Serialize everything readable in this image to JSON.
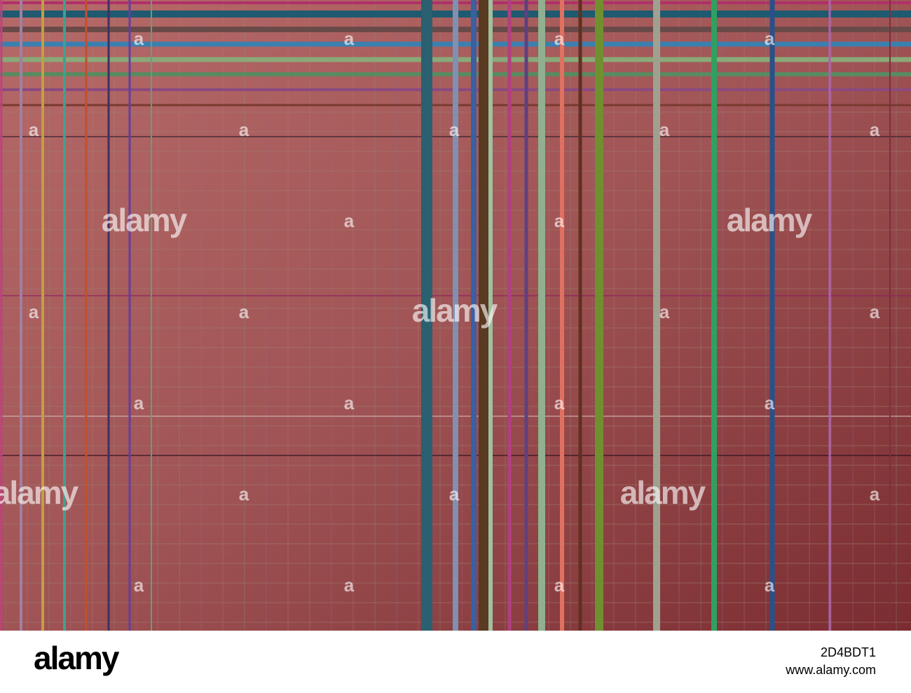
{
  "watermarks": {
    "large": [
      "alamy",
      "alamy",
      "alamy",
      "alamy",
      "alamy"
    ],
    "small": [
      "a",
      "a",
      "a",
      "a",
      "a",
      "a",
      "a",
      "a",
      "a",
      "a",
      "a",
      "a",
      "a",
      "a",
      "a",
      "a",
      "a",
      "a",
      "a",
      "a",
      "a",
      "a",
      "a",
      "a",
      "a",
      "a"
    ]
  },
  "footer": {
    "logo": "alamy",
    "image_id": "2D4BDT1",
    "url": "www.alamy.com"
  }
}
